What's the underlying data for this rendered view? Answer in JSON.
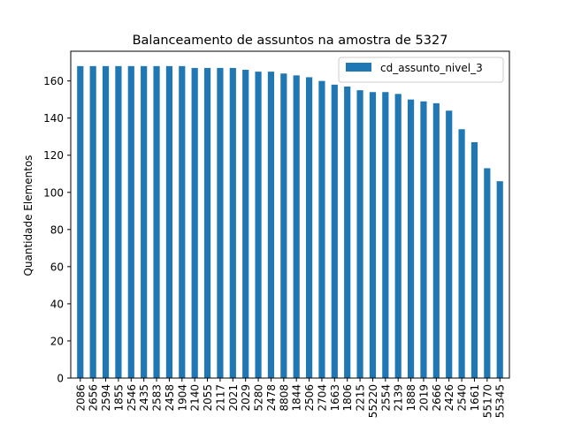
{
  "chart_data": {
    "type": "bar",
    "title": "Balanceamento de assuntos na amostra de 5327",
    "xlabel": "",
    "ylabel": "Quantidade Elementos",
    "ylim": [
      0,
      176
    ],
    "yticks": [
      0,
      20,
      40,
      60,
      80,
      100,
      120,
      140,
      160
    ],
    "grid": false,
    "legend_position": "top-right",
    "categories": [
      "2086",
      "2656",
      "2594",
      "1855",
      "2546",
      "2435",
      "2583",
      "2458",
      "1904",
      "2140",
      "2055",
      "2117",
      "2021",
      "2029",
      "5280",
      "2478",
      "8808",
      "1844",
      "2506",
      "2704",
      "1663",
      "1806",
      "2215",
      "55220",
      "2554",
      "2139",
      "1888",
      "2019",
      "2666",
      "2426",
      "2540",
      "1661",
      "55170",
      "55345"
    ],
    "series": [
      {
        "name": "cd_assunto_nivel_3",
        "color": "#1f77b4",
        "values": [
          168,
          168,
          168,
          168,
          168,
          168,
          168,
          168,
          168,
          167,
          167,
          167,
          167,
          166,
          165,
          165,
          164,
          163,
          162,
          160,
          158,
          157,
          155,
          154,
          154,
          153,
          150,
          149,
          148,
          144,
          134,
          127,
          113,
          106
        ]
      }
    ]
  }
}
